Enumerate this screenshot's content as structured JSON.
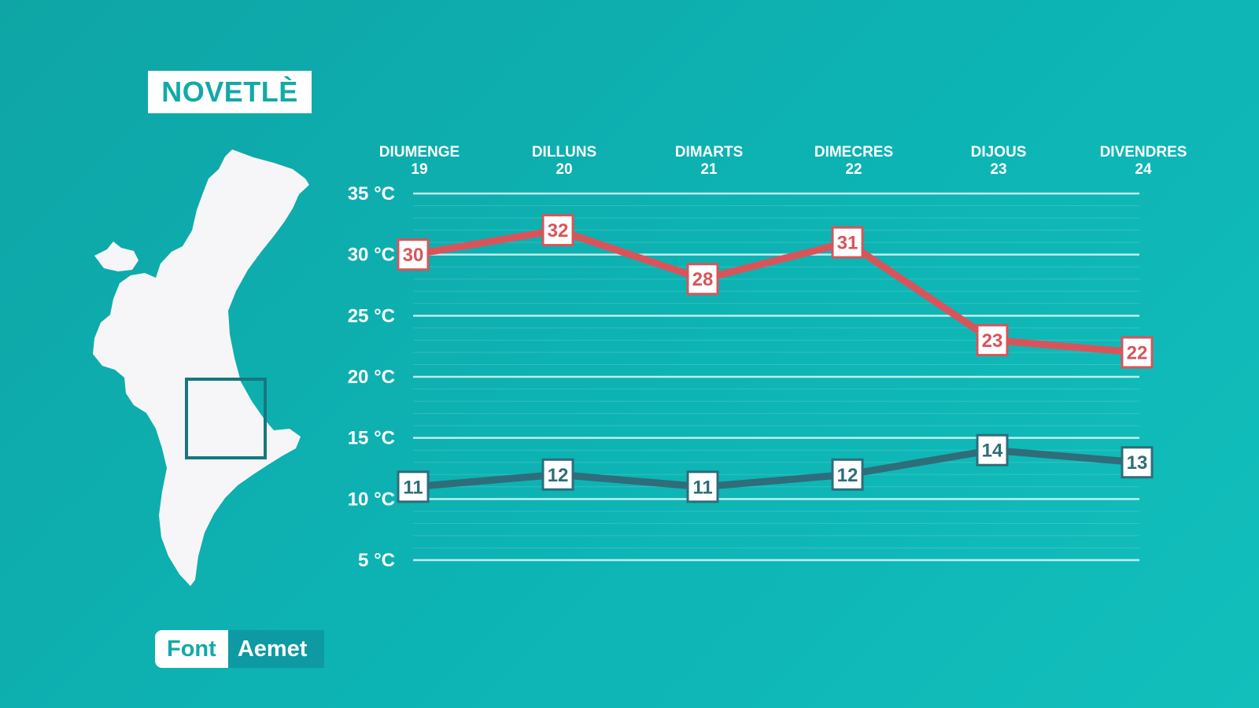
{
  "brand": {
    "title": "NOVETLÈ"
  },
  "source": {
    "label": "Font",
    "name": "Aemet"
  },
  "colors": {
    "max": "#d9545a",
    "min": "#2e6d7a",
    "background": "#0fb2b1"
  },
  "chart_data": {
    "type": "line",
    "categories": [
      {
        "day": "DIUMENGE",
        "date": "19"
      },
      {
        "day": "DILLUNS",
        "date": "20"
      },
      {
        "day": "DIMARTS",
        "date": "21"
      },
      {
        "day": "DIMECRES",
        "date": "22"
      },
      {
        "day": "DIJOUS",
        "date": "23"
      },
      {
        "day": "DIVENDRES",
        "date": "24"
      }
    ],
    "series": [
      {
        "values": [
          30,
          32,
          28,
          31,
          23,
          22
        ],
        "color": "#d9545a"
      },
      {
        "values": [
          11,
          12,
          11,
          12,
          14,
          13
        ],
        "color": "#2e6d7a"
      }
    ],
    "yticks": [
      "35 °C",
      "30 °C",
      "25 °C",
      "20 °C",
      "15 °C",
      "10 °C",
      "5 °C"
    ],
    "ytick_values": [
      35,
      30,
      25,
      20,
      15,
      10,
      5
    ],
    "ylim": [
      5,
      35
    ],
    "grid": true,
    "legend": "none"
  }
}
